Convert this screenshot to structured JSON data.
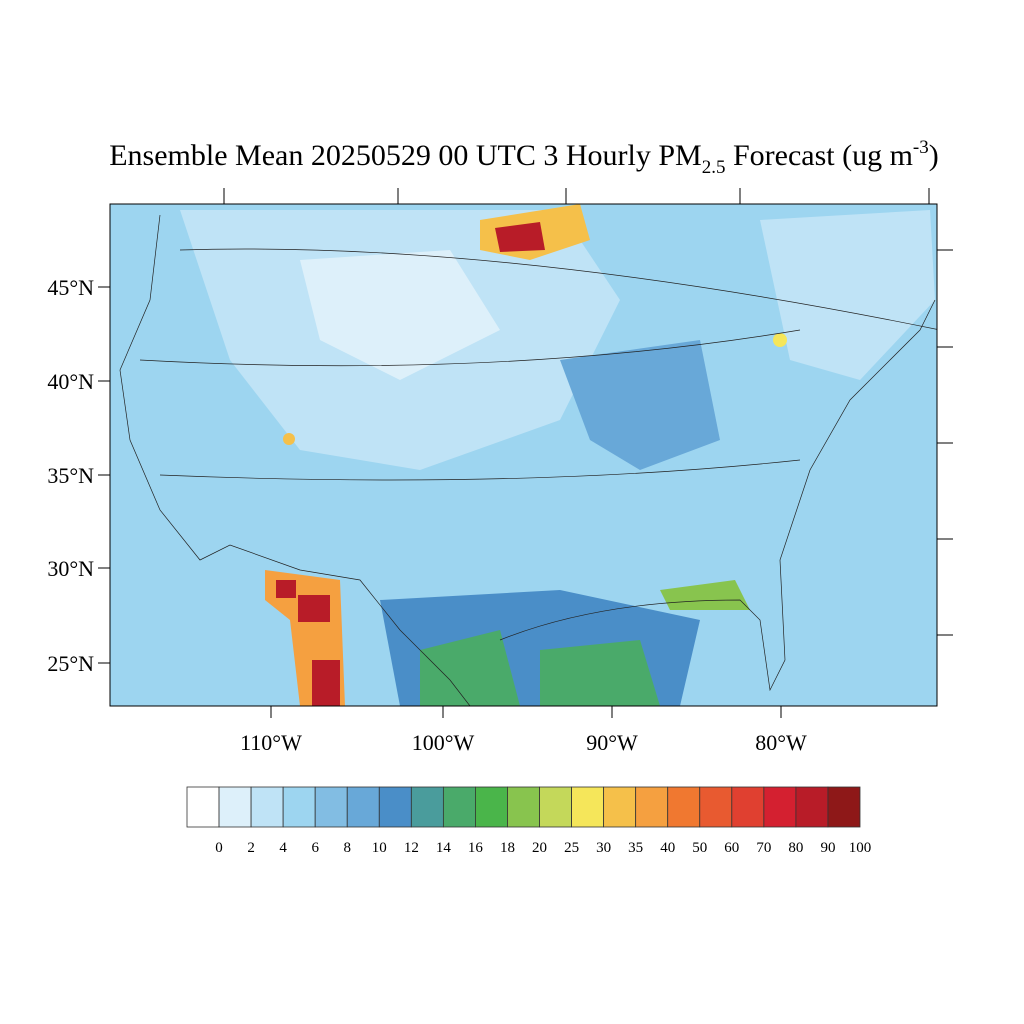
{
  "title": {
    "main": "Ensemble Mean 20250529 00 UTC 3 Hourly PM",
    "subscript": "2.5",
    "middle": " Forecast (ug m",
    "superscript": "-3",
    "end": ")"
  },
  "lat_labels": [
    "45°N",
    "40°N",
    "35°N",
    "30°N",
    "25°N"
  ],
  "lon_labels": [
    "110°W",
    "100°W",
    "90°W",
    "80°W"
  ],
  "colorbar": {
    "levels": [
      0,
      2,
      4,
      6,
      8,
      10,
      12,
      14,
      16,
      18,
      20,
      25,
      30,
      35,
      40,
      50,
      60,
      70,
      80,
      90,
      100
    ],
    "colors": [
      "#ffffff",
      "#ddf0fa",
      "#bfe3f6",
      "#9dd5f0",
      "#82bde3",
      "#68a8d8",
      "#4a8ec8",
      "#4a9c9c",
      "#4aaa6a",
      "#4ab54a",
      "#88c44e",
      "#c4d85a",
      "#f5e65a",
      "#f5c04a",
      "#f5a040",
      "#f07830",
      "#e85a30",
      "#e04030",
      "#d42030",
      "#b81c28",
      "#8e1818"
    ]
  }
}
